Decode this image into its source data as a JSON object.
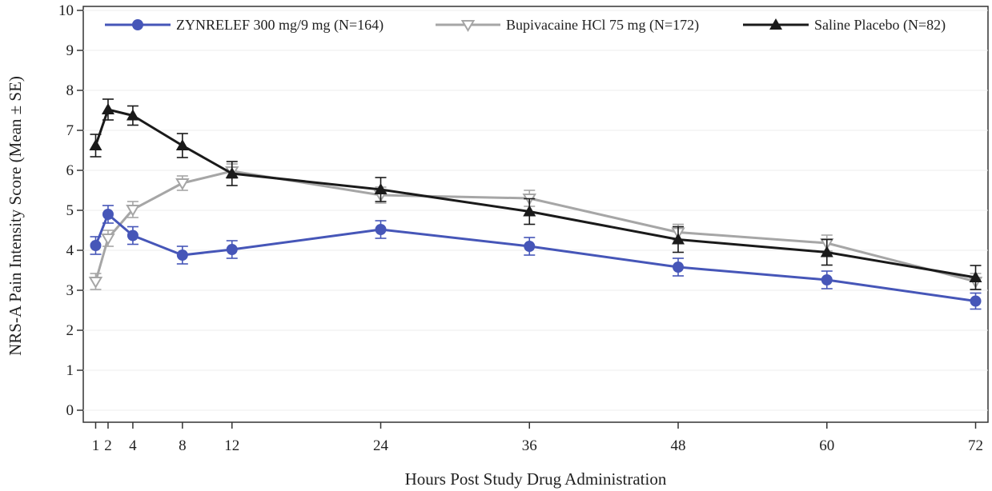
{
  "chart_data": {
    "type": "line",
    "xlabel": "Hours Post Study Drug Administration",
    "ylabel": "NRS-A Pain Intensity Score (Mean ± SE)",
    "x": [
      1,
      2,
      4,
      8,
      12,
      24,
      36,
      48,
      60,
      72
    ],
    "x_ticks": [
      "1",
      "2",
      "4",
      "8",
      "12",
      "24",
      "36",
      "48",
      "60",
      "72"
    ],
    "y_ticks": [
      "0",
      "1",
      "2",
      "3",
      "4",
      "5",
      "6",
      "7",
      "8",
      "9",
      "10"
    ],
    "xlim": [
      0,
      73
    ],
    "ylim": [
      -0.3,
      10.1
    ],
    "legend_position": "top",
    "series": [
      {
        "name": "ZYNRELEF 300 mg/9 mg (N=164)",
        "color": "#4656b8",
        "marker": "circle",
        "values": [
          4.12,
          4.9,
          4.37,
          3.88,
          4.02,
          4.52,
          4.1,
          3.58,
          3.26,
          2.73
        ],
        "se": [
          0.22,
          0.22,
          0.22,
          0.22,
          0.22,
          0.22,
          0.22,
          0.22,
          0.22,
          0.2
        ]
      },
      {
        "name": "Bupivacaine HCl 75 mg (N=172)",
        "color": "#a6a6a6",
        "marker": "triangle-down",
        "values": [
          3.22,
          4.3,
          5.02,
          5.68,
          5.98,
          5.38,
          5.3,
          4.45,
          4.18,
          3.22
        ],
        "se": [
          0.2,
          0.2,
          0.2,
          0.18,
          0.18,
          0.2,
          0.2,
          0.2,
          0.2,
          0.2
        ]
      },
      {
        "name": "Saline Placebo (N=82)",
        "color": "#1a1a1a",
        "marker": "triangle-up",
        "values": [
          6.62,
          7.52,
          7.37,
          6.62,
          5.92,
          5.52,
          4.97,
          4.27,
          3.95,
          3.32
        ],
        "se": [
          0.28,
          0.26,
          0.24,
          0.3,
          0.3,
          0.3,
          0.32,
          0.32,
          0.32,
          0.3
        ]
      }
    ]
  }
}
